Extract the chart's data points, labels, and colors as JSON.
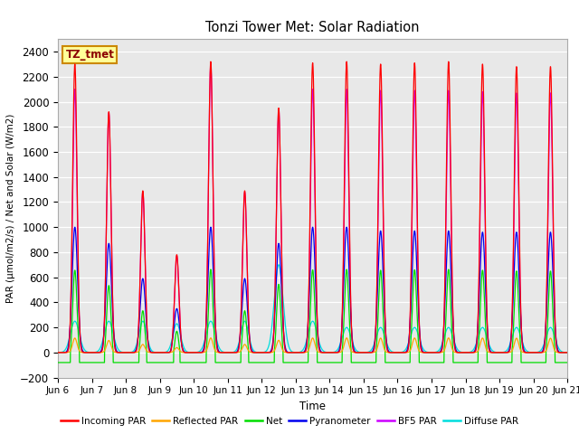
{
  "title": "Tonzi Tower Met: Solar Radiation",
  "ylabel": "PAR (μmol/m2/s) / Net and Solar (W/m2)",
  "xlabel": "Time",
  "ylim": [
    -200,
    2500
  ],
  "yticks": [
    -200,
    0,
    200,
    400,
    600,
    800,
    1000,
    1200,
    1400,
    1600,
    1800,
    2000,
    2200,
    2400
  ],
  "label_box": "TZ_tmet",
  "plot_bg_color": "#e8e8e8",
  "days": 15,
  "series_colors": {
    "incoming": "#ff0000",
    "reflected": "#ffa500",
    "net": "#00dd00",
    "pyranometer": "#0000ee",
    "bf5": "#cc00ff",
    "diffuse": "#00dddd"
  },
  "legend_labels": [
    "Incoming PAR",
    "Reflected PAR",
    "Net",
    "Pyranometer",
    "BF5 PAR",
    "Diffuse PAR"
  ],
  "legend_colors": [
    "#ff0000",
    "#ffa500",
    "#00dd00",
    "#0000ee",
    "#cc00ff",
    "#00dddd"
  ],
  "xtick_labels": [
    "Jun 6",
    "Jun 7",
    "Jun 8",
    "Jun 9",
    "Jun 10",
    "Jun 11",
    "Jun 12",
    "Jun 13",
    "Jun 14",
    "Jun 15",
    "Jun 16",
    "Jun 17",
    "Jun 18",
    "Jun 19",
    "Jun 20",
    "Jun 21"
  ],
  "cloud_factors": [
    1.0,
    0.83,
    0.55,
    0.34,
    0.95,
    0.56,
    0.85,
    1.0,
    1.0,
    1.0,
    1.0,
    1.0,
    1.0,
    1.0,
    1.0
  ],
  "inc_peaks": [
    2300,
    1920,
    1290,
    780,
    2320,
    1290,
    1950,
    2310,
    2320,
    2300,
    2310,
    2320,
    2300,
    2280,
    2280
  ],
  "pyr_peaks": [
    1000,
    870,
    590,
    350,
    1000,
    590,
    870,
    1000,
    1000,
    970,
    970,
    970,
    960,
    960,
    960
  ],
  "bf5_peaks": [
    2100,
    1910,
    1280,
    770,
    2300,
    1280,
    1940,
    2100,
    2100,
    2090,
    2090,
    2090,
    2080,
    2070,
    2070
  ],
  "diff_peaks": [
    250,
    250,
    250,
    230,
    250,
    250,
    700,
    250,
    200,
    200,
    200,
    200,
    200,
    200,
    200
  ],
  "net_night": -80
}
